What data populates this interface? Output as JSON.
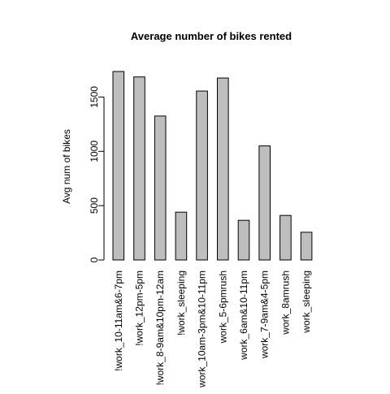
{
  "chart_data": {
    "type": "bar",
    "title": "Average number of bikes rented",
    "xlabel": "",
    "ylabel": "Avg num of bikes",
    "categories": [
      "!work_10-11am&6-7pm",
      "!work_12pm-5pm",
      "!work_8-9am&10pm-12am",
      "!work_sleeping",
      "work_10am-3pm&10-11pm",
      "work_5-6pmrush",
      "work_6am&10-11pm",
      "work_7-9am&4-5pm",
      "work_8amrush",
      "work_sleeping"
    ],
    "values": [
      1735,
      1685,
      1325,
      440,
      1555,
      1675,
      365,
      1050,
      410,
      255
    ],
    "ylim": [
      0,
      1750
    ],
    "yticks": [
      0,
      500,
      1000,
      1500
    ],
    "grid": false,
    "legend": "none",
    "bar_color": "#bebebe",
    "edge_color": "#000000"
  }
}
